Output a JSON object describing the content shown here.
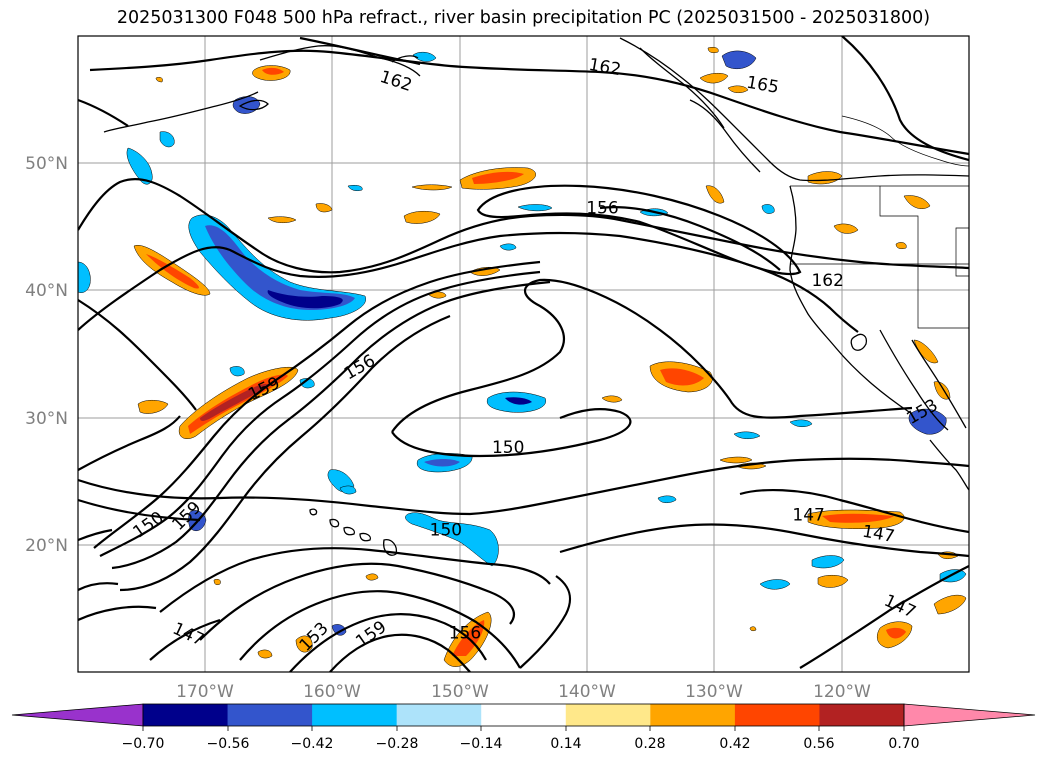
{
  "title": "2025031300 F048 500 hPa refract., river basin precipitation PC (2025031500 - 2025031800)",
  "map": {
    "projection": "equirectangular",
    "extent": {
      "lon_min": -179,
      "lon_max": -109,
      "lat_min": 10,
      "lat_max": 60
    },
    "gridlines": true,
    "lat_labels": [
      {
        "lat": 50,
        "text": "50°N"
      },
      {
        "lat": 40,
        "text": "40°N"
      },
      {
        "lat": 30,
        "text": "30°N"
      },
      {
        "lat": 20,
        "text": "20°N"
      }
    ],
    "lon_labels": [
      {
        "lon": -170,
        "text": "170°W"
      },
      {
        "lon": -160,
        "text": "160°W"
      },
      {
        "lon": -150,
        "text": "150°W"
      },
      {
        "lon": -140,
        "text": "140°W"
      },
      {
        "lon": -130,
        "text": "130°W"
      },
      {
        "lon": -120,
        "text": "120°W"
      }
    ]
  },
  "contours": {
    "variable": "500 hPa refractivity",
    "levels": [
      147,
      150,
      153,
      156,
      159,
      162,
      165
    ],
    "labels": [
      {
        "text": "162",
        "lon": -154,
        "lat": 56.5,
        "rot": 18
      },
      {
        "text": "162",
        "lon": -137.6,
        "lat": 57.6,
        "rot": 10
      },
      {
        "text": "165",
        "lon": -125.2,
        "lat": 56.2,
        "rot": 10
      },
      {
        "text": "156",
        "lon": -137.8,
        "lat": 46.5,
        "rot": 0
      },
      {
        "text": "162",
        "lon": -120.1,
        "lat": 40.8,
        "rot": 0
      },
      {
        "text": "159",
        "lon": -164.4,
        "lat": 32.3,
        "rot": -25
      },
      {
        "text": "156",
        "lon": -156.9,
        "lat": 34.0,
        "rot": -30
      },
      {
        "text": "153",
        "lon": -112.7,
        "lat": 30.5,
        "rot": -30
      },
      {
        "text": "150",
        "lon": -145.2,
        "lat": 27.7,
        "rot": 0
      },
      {
        "text": "150",
        "lon": -173.5,
        "lat": 21.6,
        "rot": -35
      },
      {
        "text": "159",
        "lon": -170.5,
        "lat": 22.3,
        "rot": -45
      },
      {
        "text": "147",
        "lon": -121.6,
        "lat": 22.4,
        "rot": 0
      },
      {
        "text": "147",
        "lon": -116.1,
        "lat": 20.9,
        "rot": 10
      },
      {
        "text": "150",
        "lon": -150.1,
        "lat": 21.2,
        "rot": 0
      },
      {
        "text": "147",
        "lon": -170.3,
        "lat": 13.0,
        "rot": 25
      },
      {
        "text": "153",
        "lon": -160.5,
        "lat": 12.8,
        "rot": -45
      },
      {
        "text": "159",
        "lon": -156.0,
        "lat": 13.0,
        "rot": -35
      },
      {
        "text": "156",
        "lon": -148.6,
        "lat": 13.1,
        "rot": 0
      },
      {
        "text": "147",
        "lon": -114.4,
        "lat": 15.2,
        "rot": 25
      }
    ]
  },
  "colorbar": {
    "ticks": [
      "−0.70",
      "−0.56",
      "−0.42",
      "−0.28",
      "−0.14",
      "0.14",
      "0.28",
      "0.42",
      "0.56",
      "0.70"
    ],
    "under_color": "#9932cc",
    "over_color": "#ff88aa",
    "colors": [
      "#00008b",
      "#3355cc",
      "#00bfff",
      "#ade3fa",
      "#ffffff",
      "#ffe88a",
      "#ffa500",
      "#ff4500",
      "#b22222"
    ]
  },
  "shading_colors": {
    "neg_strong": "#00008b",
    "neg_mid": "#3355cc",
    "neg": "#00bfff",
    "neg_weak": "#ade3fa",
    "pos_weak": "#ffe88a",
    "pos": "#ffa500",
    "pos_mid": "#ff4500",
    "pos_strong": "#b22222"
  }
}
